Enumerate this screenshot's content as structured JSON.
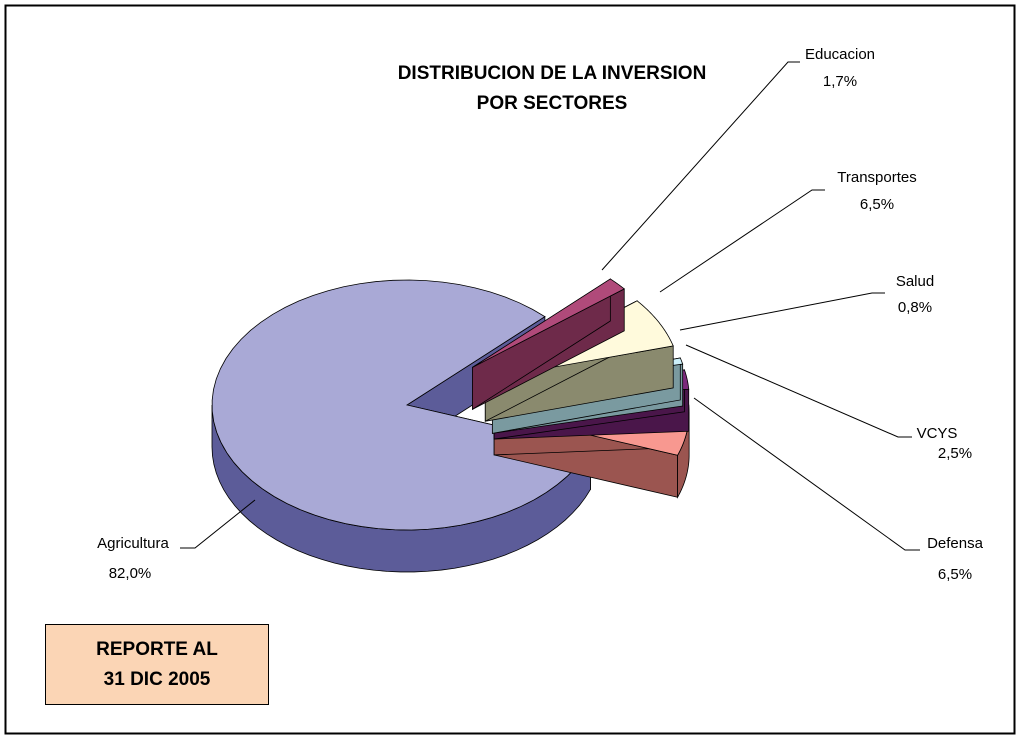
{
  "chart_data": {
    "type": "pie3d",
    "title": [
      "DISTRIBUCION DE LA INVERSION",
      "POR SECTORES"
    ],
    "categories": [
      "Agricultura",
      "Defensa",
      "VCYS",
      "Salud",
      "Transportes",
      "Educacion"
    ],
    "values": [
      82.0,
      6.5,
      2.5,
      0.8,
      6.5,
      1.7
    ],
    "value_labels": [
      "82,0%",
      "6,5%",
      "2,5%",
      "0,8%",
      "6,5%",
      "1,7%"
    ],
    "colors": [
      "#a9a9d6",
      "#f89890",
      "#7b2a7b",
      "#ccf0fa",
      "#fffadc",
      "#b04a7a"
    ],
    "side_colors": [
      "#5c5c99",
      "#9b5550",
      "#4a164a",
      "#7a9aa0",
      "#8a8a6e",
      "#6e2a4a"
    ],
    "annotation": [
      "REPORTE AL",
      "31 DIC 2005"
    ]
  }
}
